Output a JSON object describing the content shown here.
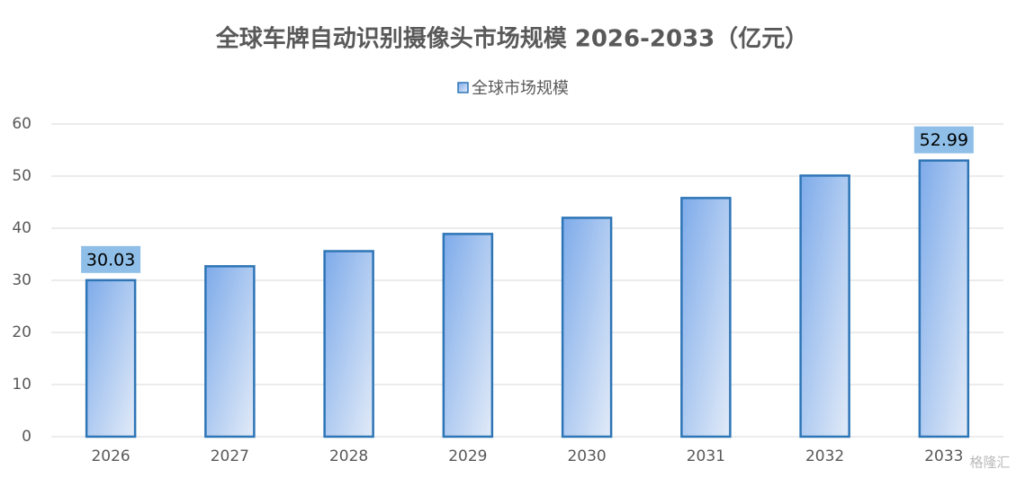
{
  "chart_data": {
    "type": "bar",
    "title": "全球车牌自动识别摄像头市场规模 2026-2033（亿元）",
    "categories": [
      "2026",
      "2027",
      "2028",
      "2029",
      "2030",
      "2031",
      "2032",
      "2033"
    ],
    "series": [
      {
        "name": "全球市场规模",
        "color": "#2e75b6",
        "values": [
          30.03,
          32.7,
          35.6,
          38.9,
          42.0,
          45.8,
          50.1,
          52.99
        ],
        "value_labels": [
          "30.03",
          null,
          null,
          null,
          null,
          null,
          null,
          "52.99"
        ]
      }
    ],
    "ylim": [
      0,
      60
    ],
    "yticks": [
      0,
      10,
      20,
      30,
      40,
      50,
      60
    ],
    "grid": true,
    "legend": "top",
    "watermark": "格隆汇"
  }
}
